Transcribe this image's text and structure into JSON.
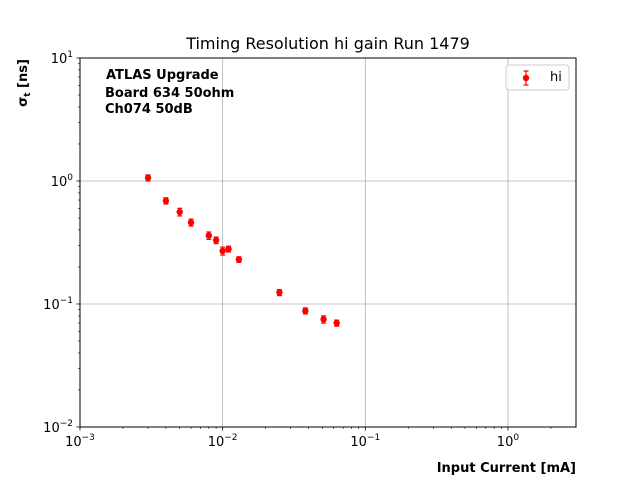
{
  "chart_data": {
    "type": "scatter",
    "title": "Timing Resolution hi gain Run 1479",
    "xlabel": "Input Current [mA]",
    "ylabel_main": "σ",
    "ylabel_sub": "t",
    "ylabel_unit": " [ns]",
    "xscale": "log",
    "yscale": "log",
    "xlim": [
      0.001,
      3
    ],
    "ylim": [
      0.01,
      10
    ],
    "grid": true,
    "legend_position": "top-right",
    "annotation_lines": [
      "ATLAS Upgrade",
      "Board 634 50ohm",
      "Ch074 50dB"
    ],
    "x_ticks": [
      {
        "value": 0.001,
        "base": "10",
        "exp": "−3"
      },
      {
        "value": 0.01,
        "base": "10",
        "exp": "−2"
      },
      {
        "value": 0.1,
        "base": "10",
        "exp": "−1"
      },
      {
        "value": 1,
        "base": "10",
        "exp": "0"
      }
    ],
    "y_ticks": [
      {
        "value": 0.01,
        "base": "10",
        "exp": "−2"
      },
      {
        "value": 0.1,
        "base": "10",
        "exp": "−1"
      },
      {
        "value": 1,
        "base": "10",
        "exp": "0"
      },
      {
        "value": 10,
        "base": "10",
        "exp": "1"
      }
    ],
    "series": [
      {
        "name": "hi",
        "color": "#ff0000",
        "points": [
          {
            "x": 0.003,
            "y": 1.06,
            "yerr": 0.06
          },
          {
            "x": 0.004,
            "y": 0.69,
            "yerr": 0.04
          },
          {
            "x": 0.005,
            "y": 0.56,
            "yerr": 0.04
          },
          {
            "x": 0.006,
            "y": 0.46,
            "yerr": 0.03
          },
          {
            "x": 0.008,
            "y": 0.36,
            "yerr": 0.025
          },
          {
            "x": 0.009,
            "y": 0.33,
            "yerr": 0.02
          },
          {
            "x": 0.01,
            "y": 0.27,
            "yerr": 0.02
          },
          {
            "x": 0.011,
            "y": 0.28,
            "yerr": 0.015
          },
          {
            "x": 0.013,
            "y": 0.23,
            "yerr": 0.012
          },
          {
            "x": 0.025,
            "y": 0.124,
            "yerr": 0.007
          },
          {
            "x": 0.038,
            "y": 0.088,
            "yerr": 0.005
          },
          {
            "x": 0.051,
            "y": 0.075,
            "yerr": 0.005
          },
          {
            "x": 0.063,
            "y": 0.07,
            "yerr": 0.004
          }
        ]
      }
    ]
  }
}
